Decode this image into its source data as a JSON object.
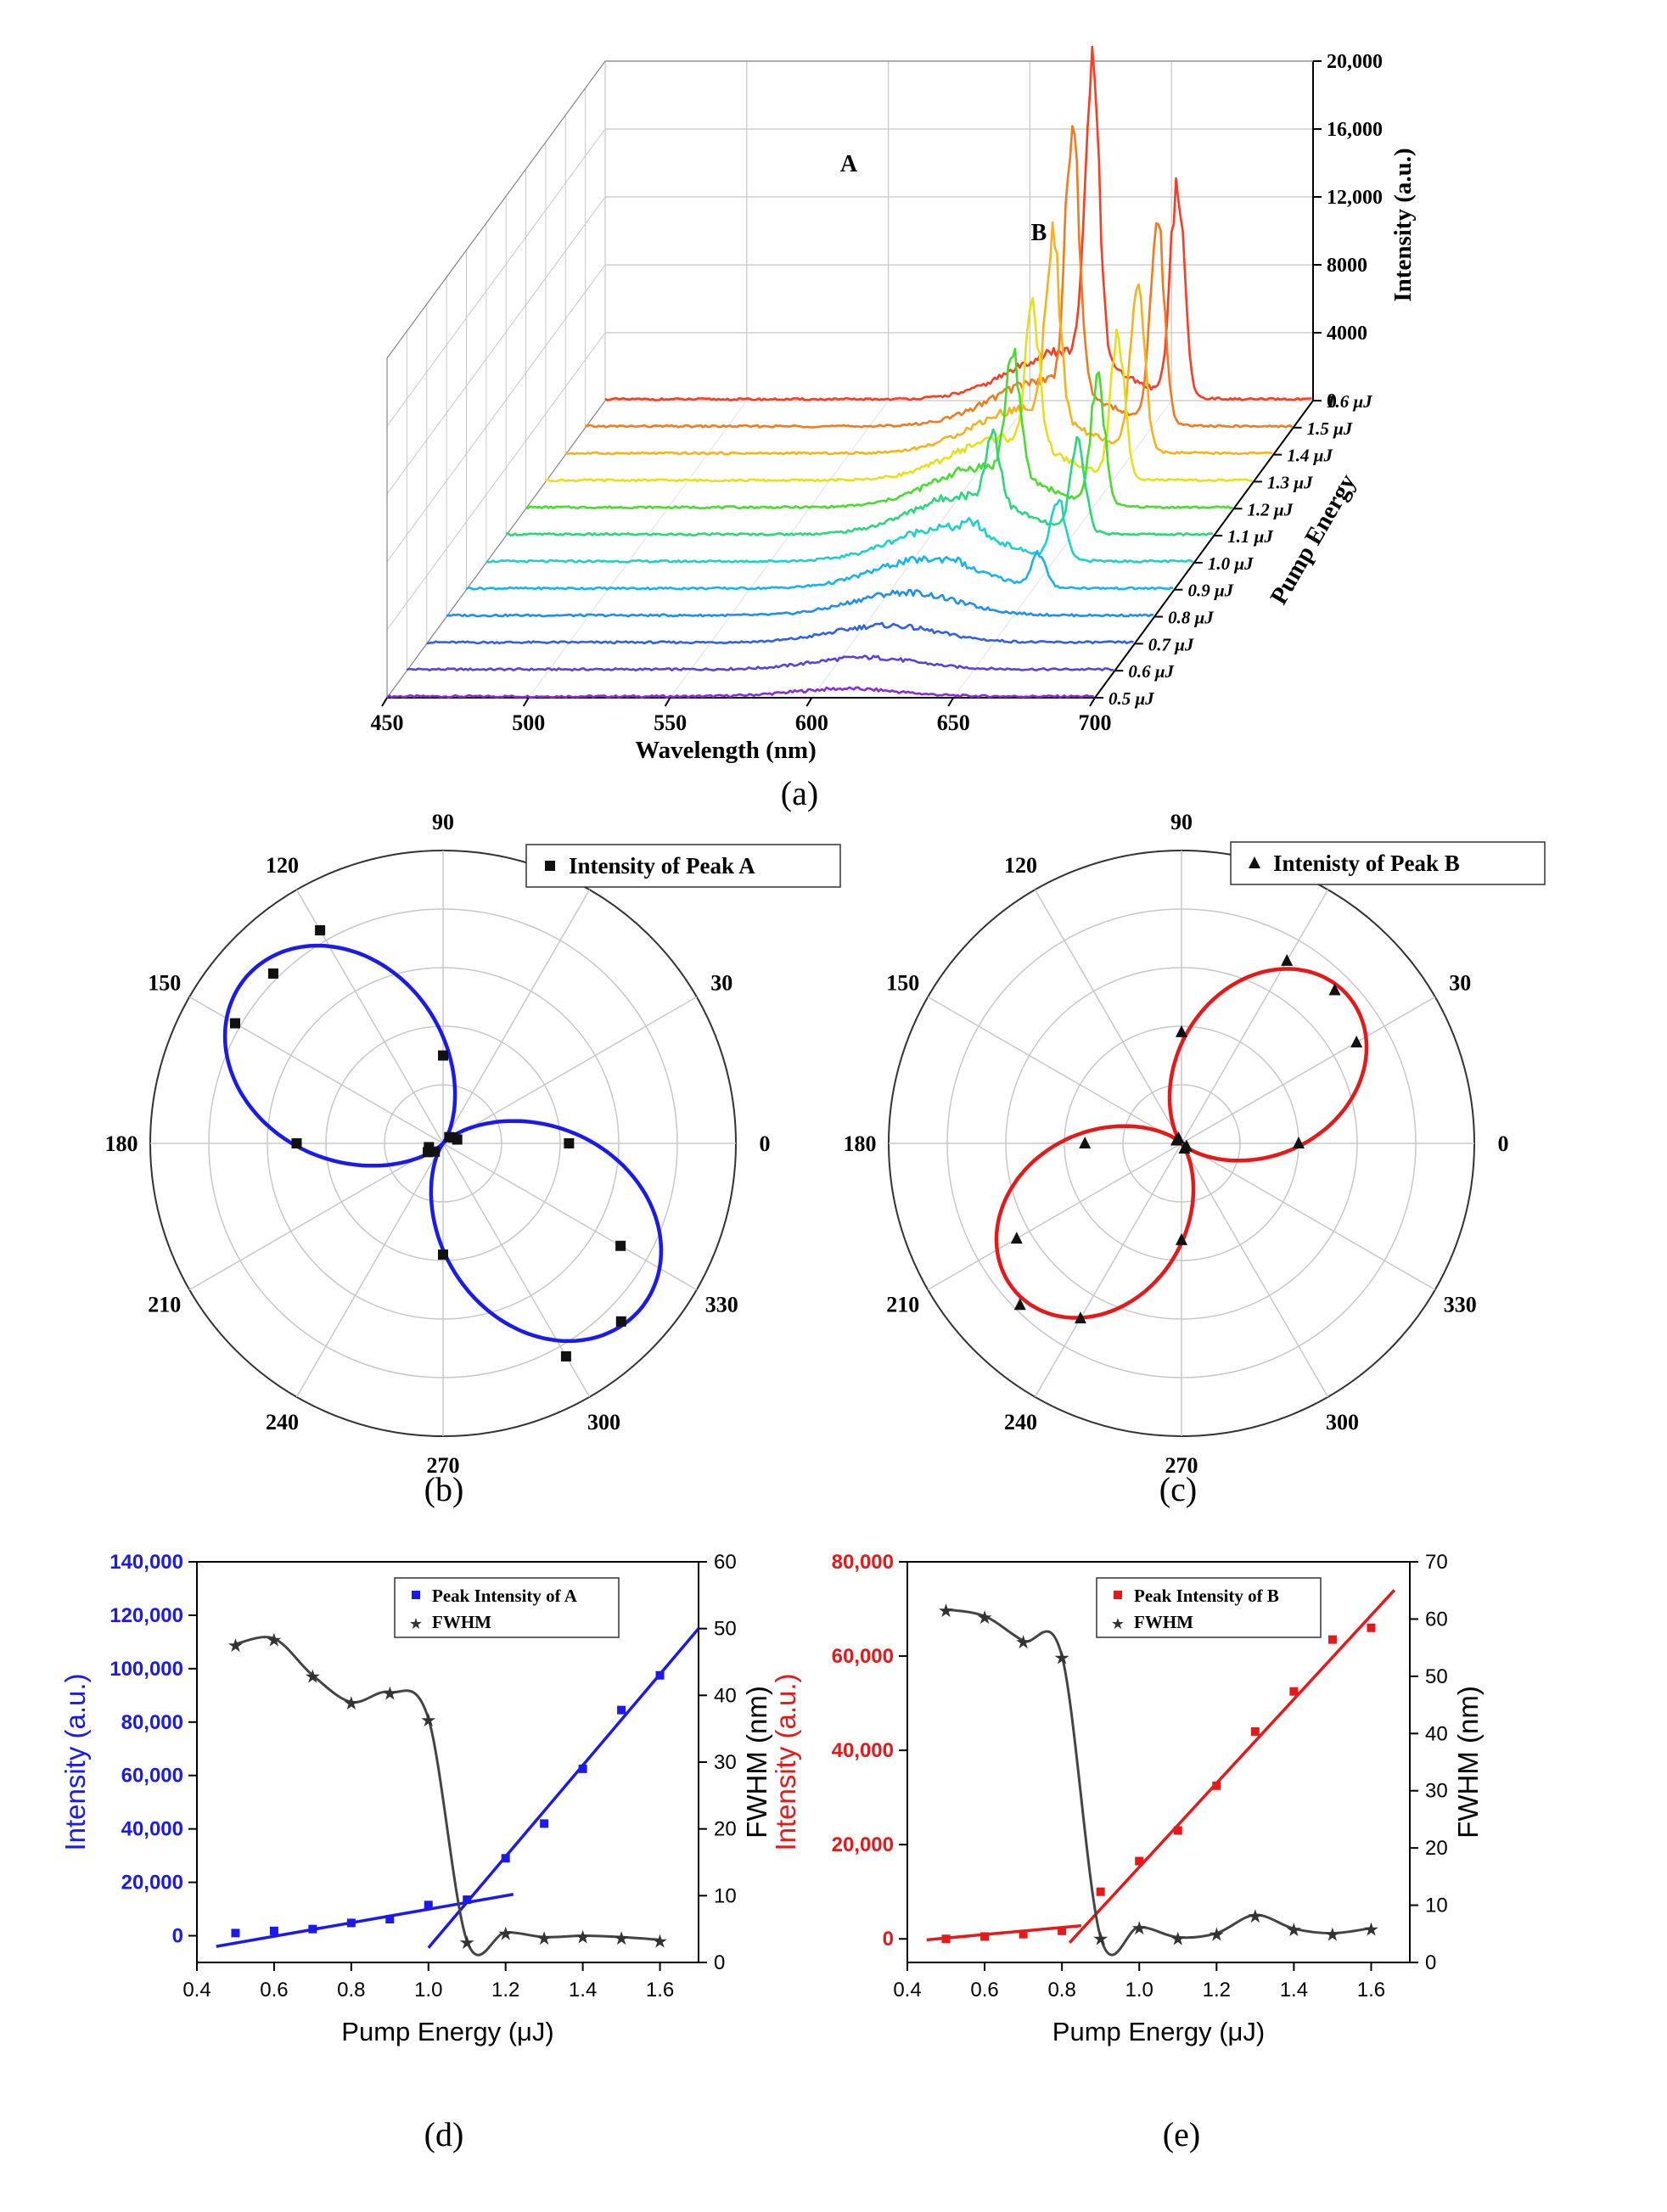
{
  "figure": {
    "panel_labels": [
      "(a)",
      "(b)",
      "(c)",
      "(d)",
      "(e)"
    ],
    "colors": {
      "rainbow": [
        "#8a2be2",
        "#5a3ee8",
        "#2f5ff0",
        "#1e8ef2",
        "#12b5f0",
        "#19d3c8",
        "#26d97a",
        "#47dd2a",
        "#9be01a",
        "#e6e017",
        "#f7b21b",
        "#f27a1d",
        "#ff3a1f",
        "#e00000"
      ],
      "blue": "#1a1af0",
      "red": "#e81818",
      "black": "#222222",
      "grid": "#c8c8c8",
      "axis": "#000000"
    }
  },
  "chart_data": [
    {
      "id": "a",
      "type": "line",
      "title": "",
      "xlabel": "Wavelength (nm)",
      "ylabel": "Intensity (a.u.)",
      "zlabel": "Pump Energy",
      "xlim": [
        450,
        700
      ],
      "ylim": [
        0,
        20000
      ],
      "x_ticks": [
        "450",
        "500",
        "550",
        "600",
        "650",
        "700"
      ],
      "y_ticks": [
        "0",
        "4000",
        "8000",
        "12,000",
        "16,000",
        "20,000"
      ],
      "energies": [
        "0.5 μJ",
        "0.6 μJ",
        "0.7 μJ",
        "0.8 μJ",
        "0.9 μJ",
        "1.0 μJ",
        "1.1 μJ",
        "1.2 μJ",
        "1.3 μJ",
        "1.4 μJ",
        "1.5 μJ",
        "1.6 μJ"
      ],
      "peak_labels": [
        {
          "text": "A",
          "wavelength": 622
        },
        {
          "text": "B",
          "wavelength": 652
        }
      ],
      "spectra": [
        {
          "energy": 0.5,
          "broad_amp": 450,
          "peakA": 0,
          "peakB": 0,
          "fwhmA": 4,
          "fwhmB": 4
        },
        {
          "energy": 0.6,
          "broad_amp": 700,
          "peakA": 0,
          "peakB": 0,
          "fwhmA": 4,
          "fwhmB": 4
        },
        {
          "energy": 0.7,
          "broad_amp": 1000,
          "peakA": 0,
          "peakB": 0,
          "fwhmA": 4,
          "fwhmB": 4
        },
        {
          "energy": 0.8,
          "broad_amp": 1350,
          "peakA": 0,
          "peakB": 0,
          "fwhmA": 4,
          "fwhmB": 4
        },
        {
          "energy": 0.9,
          "broad_amp": 1700,
          "peakA": 300,
          "peakB": 1900,
          "fwhmA": 4,
          "fwhmB": 3.5
        },
        {
          "energy": 1.0,
          "broad_amp": 2000,
          "peakA": 600,
          "peakB": 3400,
          "fwhmA": 4,
          "fwhmB": 3.5
        },
        {
          "energy": 1.1,
          "broad_amp": 2300,
          "peakA": 4100,
          "peakB": 5300,
          "fwhmA": 3.5,
          "fwhmB": 3.5
        },
        {
          "energy": 1.2,
          "broad_amp": 2400,
          "peakA": 7200,
          "peakB": 7200,
          "fwhmA": 3.5,
          "fwhmB": 3.5
        },
        {
          "energy": 1.3,
          "broad_amp": 2500,
          "peakA": 7900,
          "peakB": 8100,
          "fwhmA": 3.5,
          "fwhmB": 3.5
        },
        {
          "energy": 1.4,
          "broad_amp": 2600,
          "peakA": 10800,
          "peakB": 9600,
          "fwhmA": 3.5,
          "fwhmB": 3.5
        },
        {
          "energy": 1.5,
          "broad_amp": 2700,
          "peakA": 15200,
          "peakB": 11800,
          "fwhmA": 3.5,
          "fwhmB": 3.5
        },
        {
          "energy": 1.6,
          "broad_amp": 2800,
          "peakA": 17200,
          "peakB": 12400,
          "fwhmA": 3.5,
          "fwhmB": 3.5
        }
      ],
      "peak_wavelengths": {
        "A": 622,
        "B": 652
      },
      "broad_center": 612,
      "broad_width": 26
    },
    {
      "id": "b",
      "type": "scatter",
      "projection": "polar",
      "title": "",
      "legend": "Intensity of Peak A",
      "legend_position": "top-right",
      "marker": "square",
      "fit_color": "blue",
      "angle_ticks": [
        "0",
        "30",
        "60",
        "90",
        "120",
        "150",
        "180",
        "210",
        "240",
        "270",
        "300",
        "330"
      ],
      "radial_max": 1.0,
      "fit": {
        "orientation_deg": 140,
        "amplitude": 0.88
      },
      "points": [
        {
          "angle": 0,
          "r": 0.43
        },
        {
          "angle": 15,
          "r": 0.05
        },
        {
          "angle": 30,
          "r": 0.04
        },
        {
          "angle": 45,
          "r": 0.03
        },
        {
          "angle": 90,
          "r": 0.3
        },
        {
          "angle": 120,
          "r": 0.84
        },
        {
          "angle": 135,
          "r": 0.82
        },
        {
          "angle": 150,
          "r": 0.82
        },
        {
          "angle": 180,
          "r": 0.5
        },
        {
          "angle": 195,
          "r": 0.05
        },
        {
          "angle": 210,
          "r": 0.06
        },
        {
          "angle": 225,
          "r": 0.04
        },
        {
          "angle": 270,
          "r": 0.38
        },
        {
          "angle": 300,
          "r": 0.84
        },
        {
          "angle": 315,
          "r": 0.86
        },
        {
          "angle": 330,
          "r": 0.7
        }
      ]
    },
    {
      "id": "c",
      "type": "scatter",
      "projection": "polar",
      "title": "",
      "legend": "Intenisty of Peak B",
      "legend_position": "top-right",
      "marker": "triangle",
      "fit_color": "red",
      "angle_ticks": [
        "0",
        "30",
        "60",
        "90",
        "120",
        "150",
        "180",
        "210",
        "240",
        "270",
        "300",
        "330"
      ],
      "radial_max": 1.0,
      "fit": {
        "orientation_deg": 42,
        "amplitude": 0.76
      },
      "points": [
        {
          "angle": 0,
          "r": 0.4
        },
        {
          "angle": 30,
          "r": 0.69
        },
        {
          "angle": 45,
          "r": 0.74
        },
        {
          "angle": 60,
          "r": 0.72
        },
        {
          "angle": 90,
          "r": 0.38
        },
        {
          "angle": 120,
          "r": 0.02
        },
        {
          "angle": 150,
          "r": 0.02
        },
        {
          "angle": 180,
          "r": 0.33
        },
        {
          "angle": 210,
          "r": 0.65
        },
        {
          "angle": 225,
          "r": 0.78
        },
        {
          "angle": 240,
          "r": 0.69
        },
        {
          "angle": 270,
          "r": 0.33
        },
        {
          "angle": 300,
          "r": 0.02
        },
        {
          "angle": 330,
          "r": 0.02
        }
      ]
    },
    {
      "id": "d",
      "type": "scatter",
      "title": "",
      "xlabel": "Pump Energy (μJ)",
      "ylabel": "Intensity (a.u.)",
      "y2label": "FWHM (nm)",
      "xlim": [
        0.4,
        1.7
      ],
      "ylim": [
        -10000,
        140000
      ],
      "y2lim": [
        0,
        60
      ],
      "x_ticks": [
        "0.4",
        "0.6",
        "0.8",
        "1.0",
        "1.2",
        "1.4",
        "1.6"
      ],
      "y_ticks": [
        "0",
        "20,000",
        "40,000",
        "60,000",
        "80,000",
        "100,000",
        "120,000",
        "140,000"
      ],
      "y2_ticks": [
        "0",
        "10",
        "20",
        "30",
        "40",
        "50",
        "60"
      ],
      "series": [
        {
          "name": "Peak Intensity of A",
          "color": "blue",
          "marker": "square",
          "x": [
            0.5,
            0.6,
            0.7,
            0.8,
            0.9,
            1.0,
            1.1,
            1.2,
            1.3,
            1.4,
            1.5,
            1.6
          ],
          "values": [
            1000,
            1800,
            2500,
            4800,
            6200,
            11500,
            13500,
            29000,
            42000,
            62500,
            84500,
            97500
          ]
        },
        {
          "name": "FWHM",
          "color": "black",
          "marker": "star",
          "x": [
            0.5,
            0.6,
            0.7,
            0.8,
            0.9,
            1.0,
            1.1,
            1.2,
            1.3,
            1.4,
            1.5,
            1.6
          ],
          "values": [
            47.7,
            48.5,
            43.0,
            39.0,
            40.5,
            36.5,
            3.2,
            4.5,
            3.8,
            4.0,
            3.8,
            3.4
          ]
        }
      ],
      "fit_lines": [
        {
          "x": [
            0.45,
            1.22
          ],
          "y": [
            -4000,
            15500
          ]
        },
        {
          "x": [
            1.0,
            1.7
          ],
          "y": [
            -4500,
            115000
          ]
        }
      ]
    },
    {
      "id": "e",
      "type": "scatter",
      "title": "",
      "xlabel": "Pump Energy (μJ)",
      "ylabel": "Intensity (a.u.)",
      "y2label": "FWHM (nm)",
      "xlim": [
        0.4,
        1.7
      ],
      "ylim": [
        -5000,
        80000
      ],
      "y2lim": [
        0,
        70
      ],
      "x_ticks": [
        "0.4",
        "0.6",
        "0.8",
        "1.0",
        "1.2",
        "1.4",
        "1.6"
      ],
      "y_ticks": [
        "0",
        "20,000",
        "40,000",
        "60,000",
        "80,000"
      ],
      "y2_ticks": [
        "0",
        "10",
        "20",
        "30",
        "40",
        "50",
        "60",
        "70"
      ],
      "series": [
        {
          "name": "Peak Intensity of B",
          "color": "red",
          "marker": "square",
          "x": [
            0.5,
            0.6,
            0.7,
            0.8,
            0.9,
            1.0,
            1.1,
            1.2,
            1.3,
            1.4,
            1.5,
            1.6
          ],
          "values": [
            0,
            500,
            1000,
            1700,
            10000,
            16500,
            23000,
            32500,
            44000,
            52500,
            63500,
            66000
          ]
        },
        {
          "name": "FWHM",
          "color": "black",
          "marker": "star",
          "x": [
            0.5,
            0.6,
            0.7,
            0.8,
            0.9,
            1.0,
            1.1,
            1.2,
            1.3,
            1.4,
            1.5,
            1.6
          ],
          "values": [
            61.7,
            60.5,
            56.2,
            53.5,
            4.4,
            6.2,
            4.4,
            5.1,
            8.3,
            5.9,
            5.1,
            6.0
          ]
        }
      ],
      "fit_lines": [
        {
          "x": [
            0.45,
            0.85
          ],
          "y": [
            -200,
            2800
          ]
        },
        {
          "x": [
            0.82,
            1.66
          ],
          "y": [
            -800,
            74000
          ]
        }
      ]
    }
  ]
}
